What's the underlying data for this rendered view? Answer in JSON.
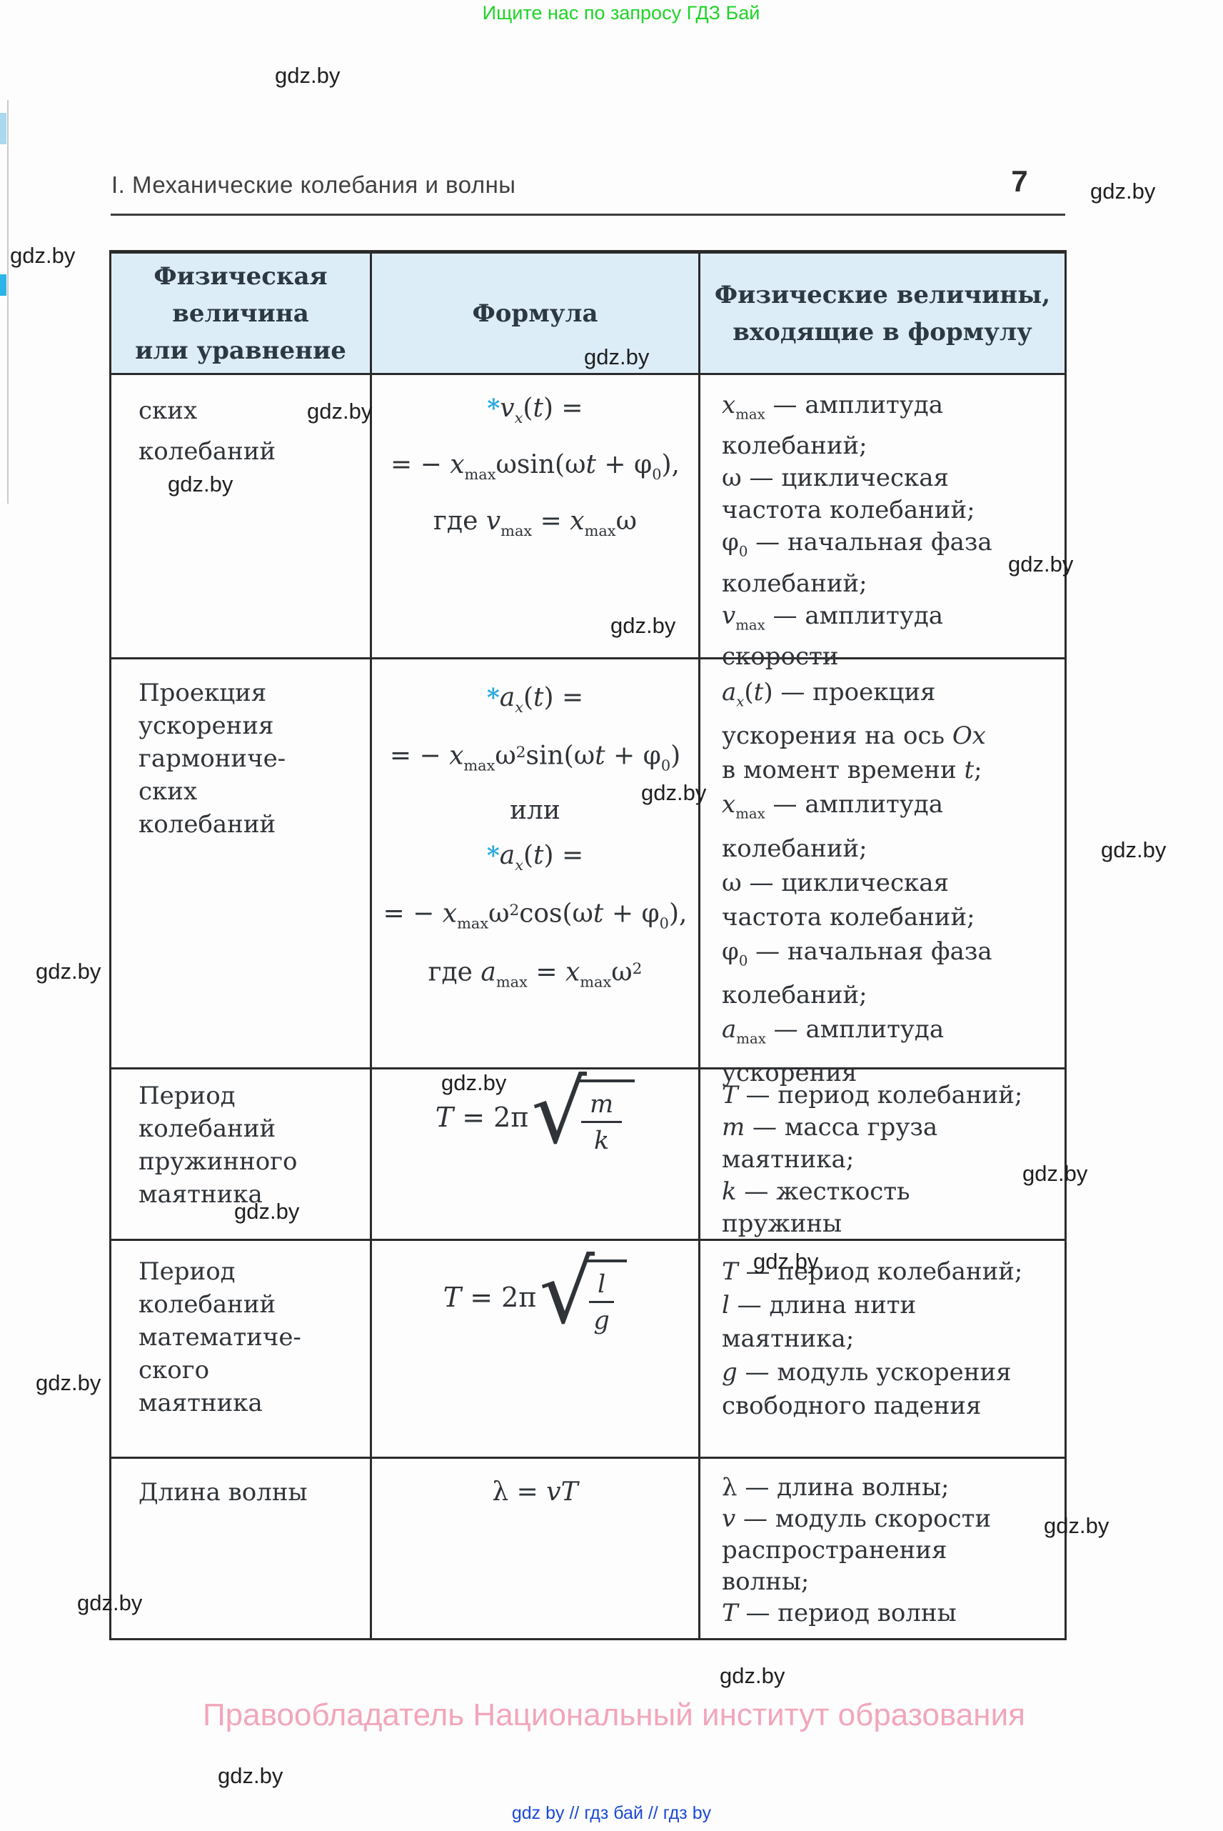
{
  "page": {
    "promo": "Ищите нас по запросу ГДЗ Бай",
    "watermark": "gdz.by",
    "chapter_title": "I. Механические колебания и волны",
    "page_number": "7",
    "copyright": "Правообладатель Национальный институт образования",
    "footer_links": "gdz by  //  гдз бай  //  гдз by"
  },
  "colors": {
    "header_cell_bg": "#ddedf8",
    "asterisk_blue": "#2aa9e0",
    "promo_green": "#1fd327",
    "copyright_pink": "#f2a6bb",
    "link_blue": "#1b49d6",
    "border_dark": "#2b2b2b"
  },
  "table": {
    "headers": {
      "col1_lines": [
        "Физическая",
        "величина",
        "или уравнение"
      ],
      "col2": "Формула",
      "col3_lines": [
        "Физические величины,",
        "входящие в формулу"
      ]
    },
    "rows": [
      {
        "name_lines": [
          "ских",
          "колебаний"
        ],
        "formula_lines": [
          "<em>*</em><i>v</i><sub><i>x</i></sub>(<i>t</i>) =",
          "= − <i>x</i><sub>max</sub>ωsin(ω<i>t</i> + φ<sub>0</sub>),",
          "где <i>v</i><sub>max</sub> = <i>x</i><sub>max</sub>ω"
        ],
        "desc_lines": [
          "<i>x</i><sub>max</sub> — амплитуда",
          "колебаний;",
          "ω — циклическая",
          "частота колебаний;",
          "φ<sub>0</sub> — начальная фаза",
          "колебаний;",
          "<i>v</i><sub>max</sub> — амплитуда",
          "скорости"
        ]
      },
      {
        "name_lines": [
          "Проекция",
          "ускорения",
          "гармониче-",
          "ских",
          "колебаний"
        ],
        "formula_lines": [
          "<em>*</em><i>a</i><sub><i>x</i></sub>(<i>t</i>) =",
          "= − <i>x</i><sub>max</sub>ω<sup>2</sup>sin(ω<i>t</i> + φ<sub>0</sub>)",
          "или",
          "<em>*</em><i>a</i><sub><i>x</i></sub>(<i>t</i>) =",
          "= − <i>x</i><sub>max</sub>ω<sup>2</sup>cos(ω<i>t</i> + φ<sub>0</sub>),",
          "где <i>a</i><sub>max</sub> = <i>x</i><sub>max</sub>ω<sup>2</sup>"
        ],
        "desc_lines": [
          "<i>a</i><sub><i>x</i></sub>(<i>t</i>) — проекция",
          "ускорения на ось <i>Ox</i>",
          "в момент времени <i>t</i>;",
          "<i>x</i><sub>max</sub> — амплитуда",
          "колебаний;",
          "ω — циклическая",
          "частота колебаний;",
          "φ<sub>0</sub> — начальная фаза",
          "колебаний;",
          "<i>a</i><sub>max</sub> — амплитуда",
          "ускорения"
        ]
      },
      {
        "name_lines": [
          "Период",
          "колебаний",
          "пружинного",
          "маятника"
        ],
        "formula_sqrt": {
          "lead": "<i>T</i> = 2π",
          "num": "<i>m</i>",
          "den": "<i>k</i>"
        },
        "desc_lines": [
          "<i>T</i> — период колебаний;",
          "<i>m</i> — масса груза",
          "маятника;",
          "<i>k</i> — жесткость",
          "пружины"
        ]
      },
      {
        "name_lines": [
          "Период",
          "колебаний",
          "математиче-",
          "ского",
          "маятника"
        ],
        "formula_sqrt": {
          "lead": "<i>T</i> = 2π",
          "num": "<i>l</i>",
          "den": "<i>g</i>"
        },
        "desc_lines": [
          "<i>T</i> — период колебаний;",
          "<i>l</i> — длина нити",
          "маятника;",
          "<i>g</i> — модуль ускорения",
          "свободного падения"
        ]
      },
      {
        "name_lines": [
          "Длина волны"
        ],
        "formula_lines": [
          "λ = <i>vT</i>"
        ],
        "desc_lines": [
          "λ — длина волны;",
          "<i>v</i> — модуль скорости",
          "распространения",
          "волны;",
          "<i>T</i> — период волны"
        ]
      }
    ]
  }
}
